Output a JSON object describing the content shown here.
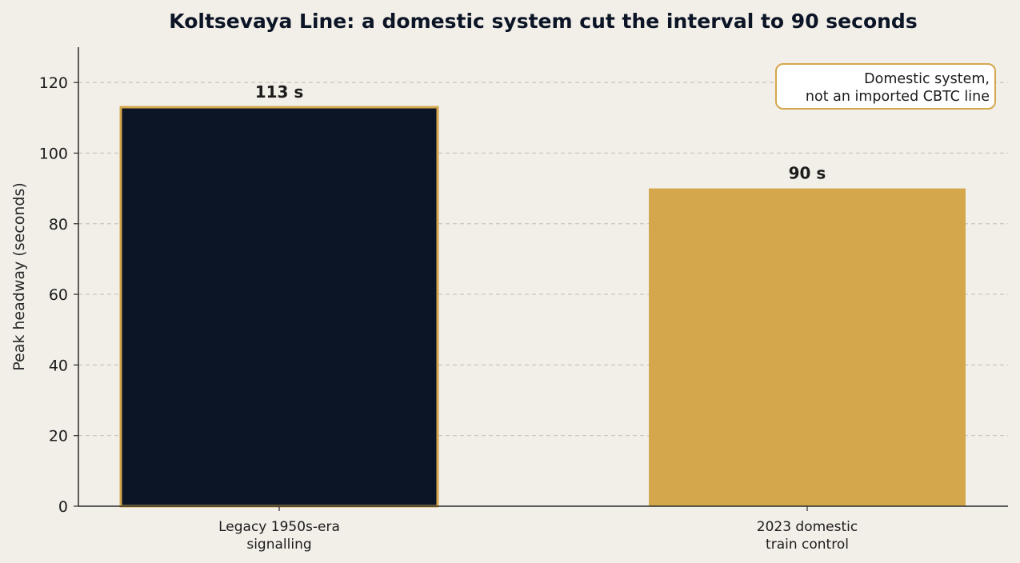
{
  "chart_data": {
    "type": "bar",
    "title": "Koltsevaya Line: a domestic system cut the interval to 90 seconds",
    "xlabel": "",
    "ylabel": "Peak headway (seconds)",
    "categories": [
      [
        "Legacy 1950s-era",
        "signalling"
      ],
      [
        "2023 domestic",
        "train control"
      ]
    ],
    "values": [
      113,
      90
    ],
    "value_labels": [
      "113 s",
      "90 s"
    ],
    "bar_colors": [
      "#0b1526",
      "#d4a74c"
    ],
    "ylim": [
      0,
      130
    ],
    "yticks": [
      0,
      20,
      40,
      60,
      80,
      100,
      120
    ],
    "grid": true,
    "annotation": {
      "lines": [
        "Domestic system,",
        "not an imported CBTC line"
      ],
      "placement": "top-right"
    }
  },
  "colors": {
    "background": "#f2eee8",
    "accent": "#d4a74c",
    "dark": "#0b1526",
    "grid": "#c8c3bc",
    "axis": "#2b2b2b"
  }
}
